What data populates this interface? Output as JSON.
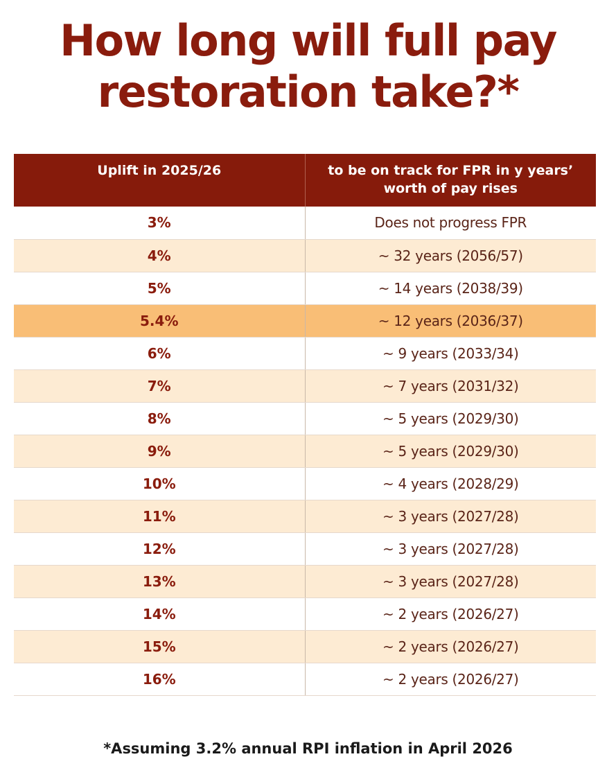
{
  "title": {
    "line1": "How long will full pay",
    "line2": "restoration take?*"
  },
  "table": {
    "headers": {
      "uplift": "Uplift in 2025/26",
      "years_line1": "to be on track for FPR in y years’",
      "years_line2": "worth of pay rises"
    },
    "highlight_row": 3,
    "colors": {
      "header_bg": "#861b0b",
      "row_alt_bg": "#fdebd3",
      "highlight_bg": "#f9be76",
      "accent_text": "#8a1c0d"
    },
    "rows": [
      {
        "uplift": "3%",
        "years": "Does not progress FPR"
      },
      {
        "uplift": "4%",
        "years": "~ 32 years (2056/57)"
      },
      {
        "uplift": "5%",
        "years": "~ 14 years (2038/39)"
      },
      {
        "uplift": "5.4%",
        "years": "~ 12 years (2036/37)"
      },
      {
        "uplift": "6%",
        "years": "~ 9 years (2033/34)"
      },
      {
        "uplift": "7%",
        "years": "~ 7 years (2031/32)"
      },
      {
        "uplift": "8%",
        "years": "~ 5 years (2029/30)"
      },
      {
        "uplift": "9%",
        "years": "~ 5 years (2029/30)"
      },
      {
        "uplift": "10%",
        "years": "~ 4 years (2028/29)"
      },
      {
        "uplift": "11%",
        "years": "~ 3 years (2027/28)"
      },
      {
        "uplift": "12%",
        "years": "~ 3 years (2027/28)"
      },
      {
        "uplift": "13%",
        "years": "~ 3 years (2027/28)"
      },
      {
        "uplift": "14%",
        "years": "~ 2 years (2026/27)"
      },
      {
        "uplift": "15%",
        "years": "~ 2 years (2026/27)"
      },
      {
        "uplift": "16%",
        "years": "~ 2 years (2026/27)"
      }
    ]
  },
  "footnote": "*Assuming 3.2% annual RPI inflation in April 2026"
}
